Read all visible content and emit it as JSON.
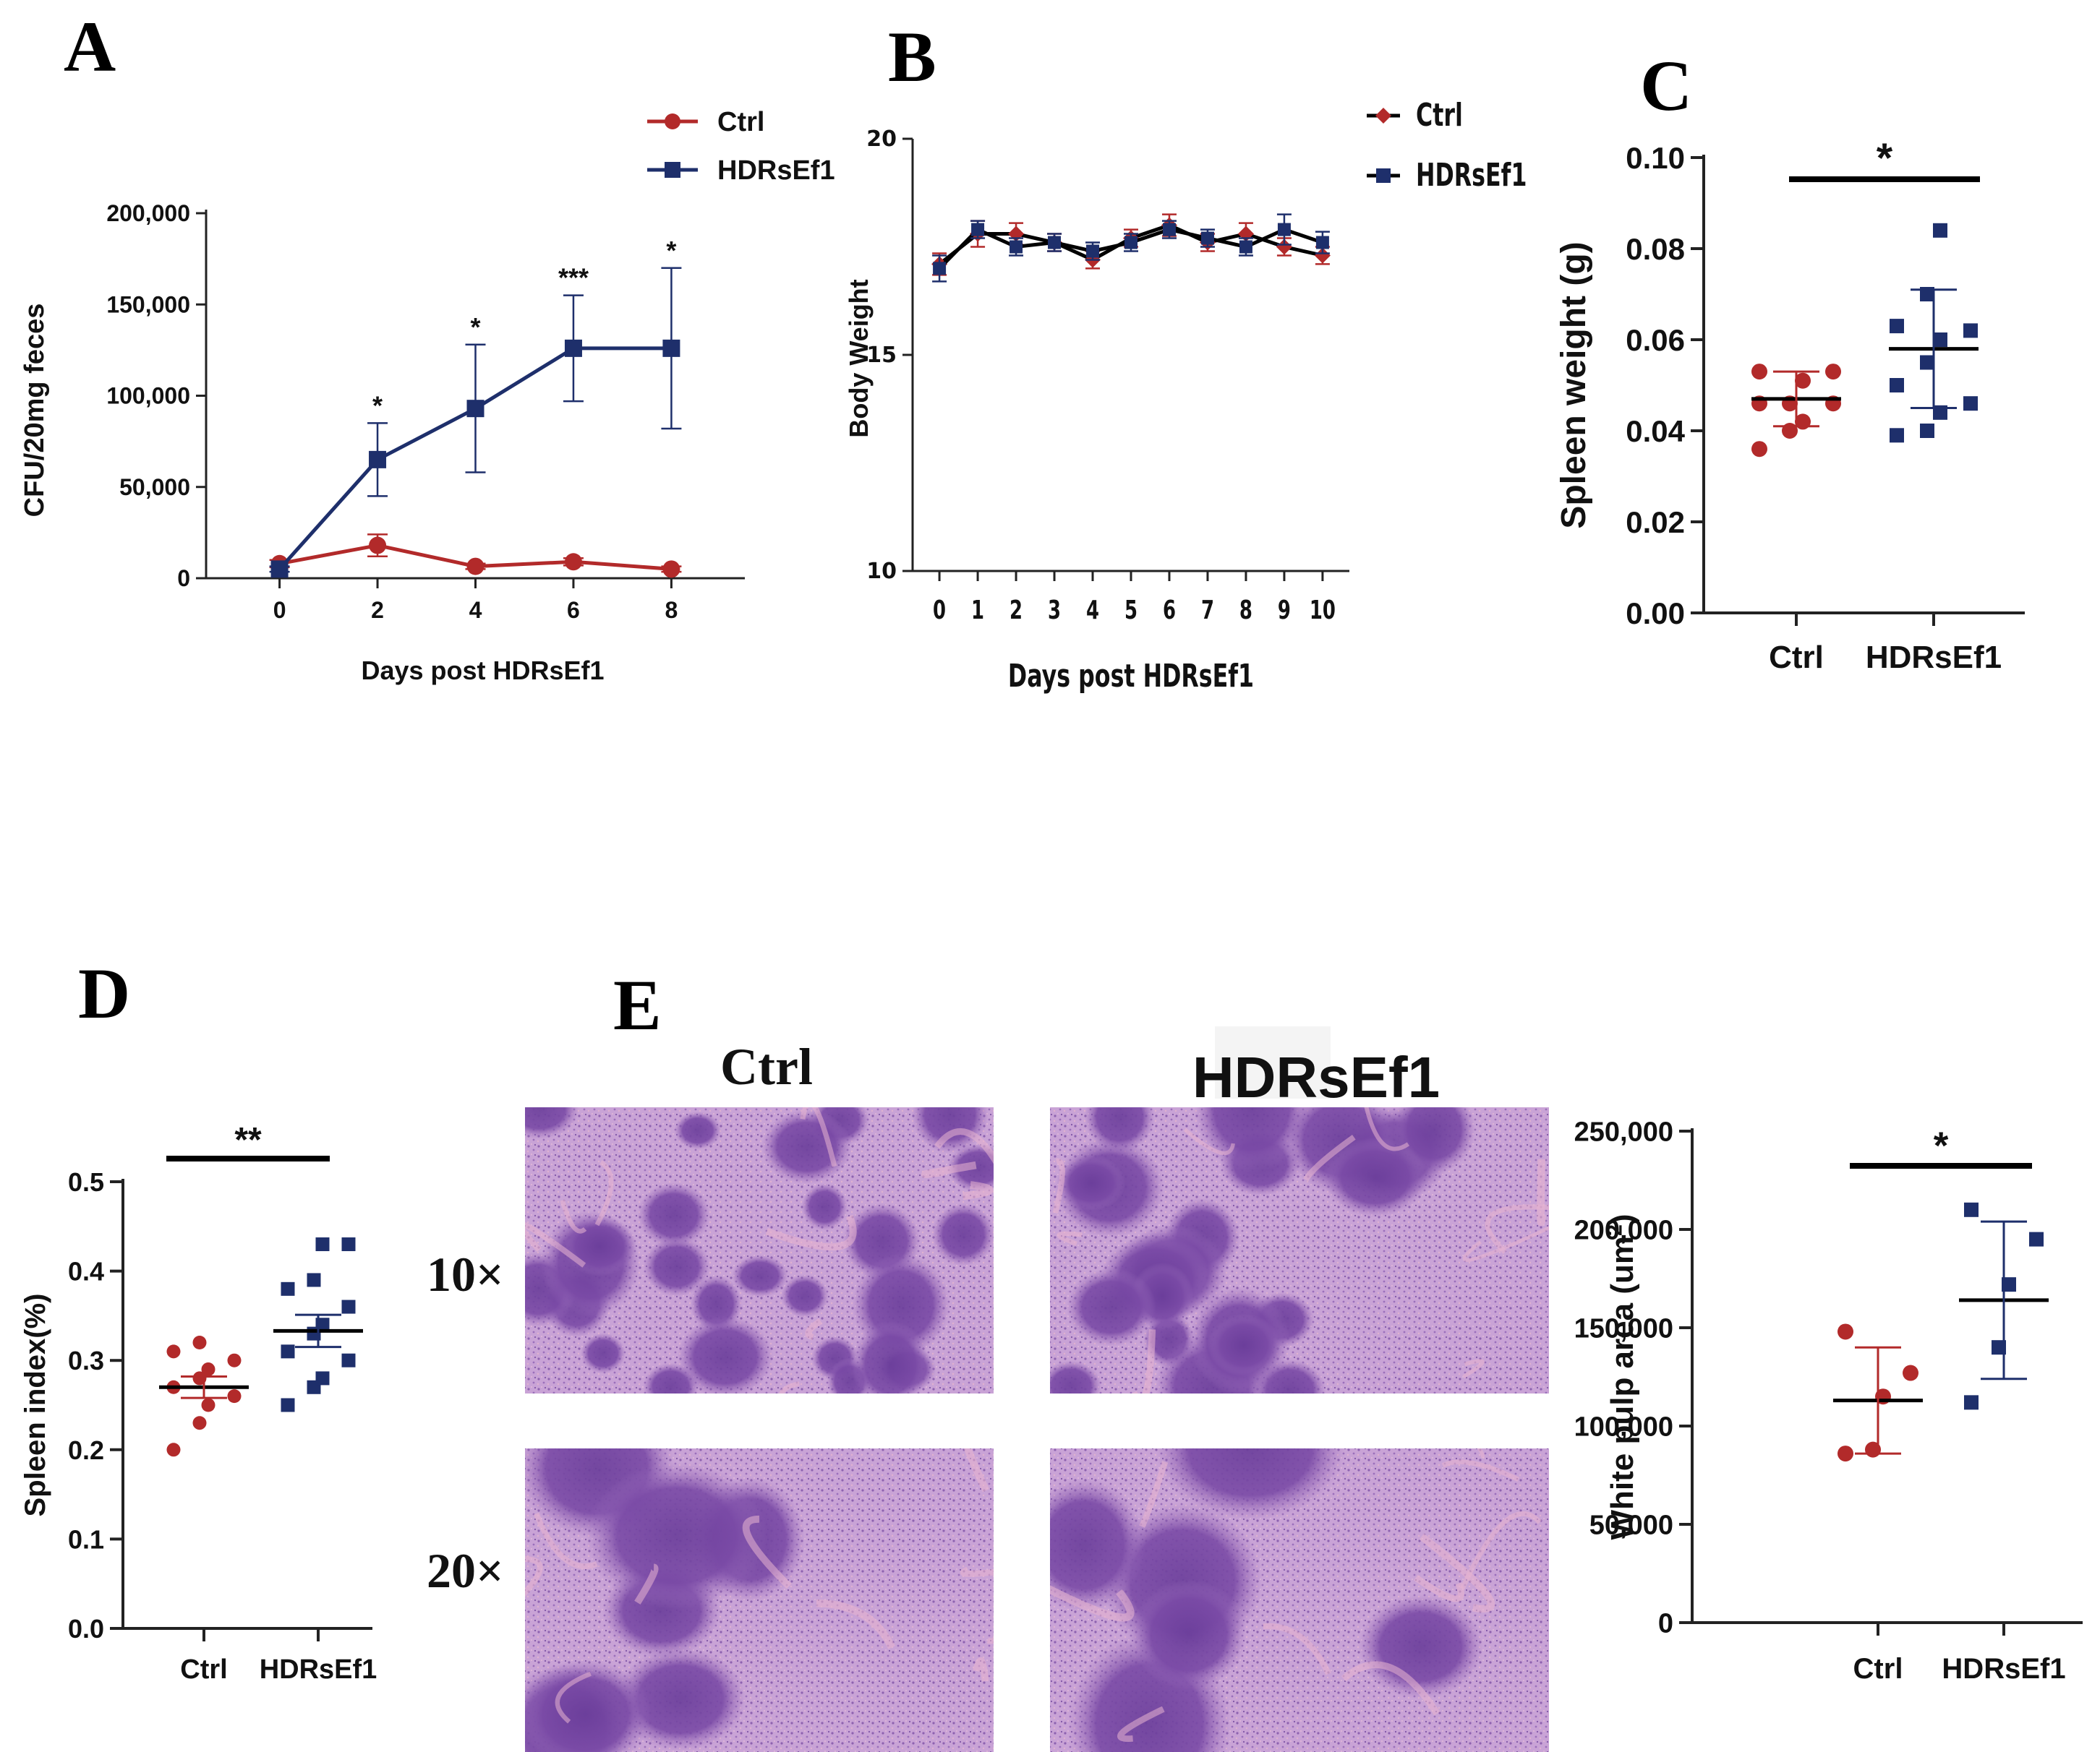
{
  "panels": {
    "A": "A",
    "B": "B",
    "C": "C",
    "D": "D",
    "E": "E"
  },
  "colors": {
    "ctrl": "#b22a2a",
    "hdr": "#1e2f6b",
    "black": "#000000"
  },
  "chart_data": [
    {
      "id": "A",
      "type": "line",
      "xlabel": "Days post HDRsEf1",
      "ylabel": "CFU/20mg feces",
      "x": [
        0,
        2,
        4,
        6,
        8
      ],
      "xticks": [
        "0",
        "2",
        "4",
        "6",
        "8"
      ],
      "xlim": [
        -1.5,
        9.5
      ],
      "ylim": [
        0,
        200000
      ],
      "yticks": [
        "0",
        "50,000",
        "100,000",
        "150,000",
        "200,000"
      ],
      "ytick_values": [
        0,
        50000,
        100000,
        150000,
        200000
      ],
      "legend": [
        "Ctrl",
        "HDRsEf1"
      ],
      "series": [
        {
          "name": "Ctrl",
          "values": [
            8000,
            18000,
            6500,
            9000,
            5000
          ],
          "err": [
            2000,
            6000,
            1500,
            2000,
            1500
          ]
        },
        {
          "name": "HDRsEf1",
          "values": [
            5000,
            65000,
            93000,
            126000,
            126000
          ],
          "err": [
            1500,
            20000,
            35000,
            29000,
            44000
          ]
        }
      ],
      "annotations": [
        {
          "x": 2,
          "text": "*"
        },
        {
          "x": 4,
          "text": "*"
        },
        {
          "x": 6,
          "text": "***"
        },
        {
          "x": 8,
          "text": "*"
        }
      ]
    },
    {
      "id": "B",
      "type": "line",
      "xlabel": "Days post HDRsEf1",
      "ylabel": "Body  Weight",
      "x": [
        0,
        1,
        2,
        3,
        4,
        5,
        6,
        7,
        8,
        9,
        10
      ],
      "xticks": [
        "0",
        "1",
        "2",
        "3",
        "4",
        "5",
        "6",
        "7",
        "8",
        "9",
        "10"
      ],
      "xlim": [
        -0.7,
        10.7
      ],
      "ylim": [
        10,
        20
      ],
      "yticks": [
        "10",
        "15",
        "20"
      ],
      "ytick_values": [
        10,
        15,
        20
      ],
      "legend": [
        "Ctrl",
        "HDRsEf1"
      ],
      "series": [
        {
          "name": "Ctrl",
          "values": [
            17.1,
            17.8,
            17.8,
            17.6,
            17.2,
            17.7,
            18.0,
            17.6,
            17.8,
            17.5,
            17.3
          ],
          "err": [
            0.25,
            0.3,
            0.25,
            0.2,
            0.2,
            0.2,
            0.25,
            0.2,
            0.25,
            0.2,
            0.2
          ]
        },
        {
          "name": "HDRsEf1",
          "values": [
            17.0,
            17.9,
            17.5,
            17.6,
            17.4,
            17.6,
            17.9,
            17.7,
            17.5,
            17.9,
            17.6
          ],
          "err": [
            0.3,
            0.2,
            0.2,
            0.2,
            0.2,
            0.2,
            0.2,
            0.2,
            0.2,
            0.35,
            0.25
          ]
        }
      ]
    },
    {
      "id": "C",
      "type": "scatter",
      "ylabel": "Spleen weight (g)",
      "categories": [
        "Ctrl",
        "HDRsEf1"
      ],
      "ylim": [
        0,
        0.1
      ],
      "yticks": [
        "0.00",
        "0.02",
        "0.04",
        "0.06",
        "0.08",
        "0.10"
      ],
      "ytick_values": [
        0,
        0.02,
        0.04,
        0.06,
        0.08,
        0.1
      ],
      "groups": [
        {
          "name": "Ctrl",
          "points": [
            0.036,
            0.04,
            0.042,
            0.046,
            0.046,
            0.046,
            0.051,
            0.053,
            0.053
          ],
          "mean": 0.047,
          "err": 0.006
        },
        {
          "name": "HDRsEf1",
          "points": [
            0.039,
            0.04,
            0.044,
            0.046,
            0.05,
            0.055,
            0.06,
            0.062,
            0.063,
            0.07,
            0.084
          ],
          "mean": 0.058,
          "err": 0.013
        }
      ],
      "significance": "*"
    },
    {
      "id": "D",
      "type": "scatter",
      "ylabel": "Spleen index(%)",
      "categories": [
        "Ctrl",
        "HDRsEf1"
      ],
      "ylim": [
        0,
        0.5
      ],
      "yticks": [
        "0.0",
        "0.1",
        "0.2",
        "0.3",
        "0.4",
        "0.5"
      ],
      "ytick_values": [
        0,
        0.1,
        0.2,
        0.3,
        0.4,
        0.5
      ],
      "groups": [
        {
          "name": "Ctrl",
          "points": [
            0.2,
            0.23,
            0.25,
            0.26,
            0.27,
            0.28,
            0.29,
            0.3,
            0.31,
            0.32
          ],
          "mean": 0.27,
          "err": 0.012
        },
        {
          "name": "HDRsEf1",
          "points": [
            0.25,
            0.27,
            0.28,
            0.3,
            0.31,
            0.33,
            0.34,
            0.36,
            0.38,
            0.39,
            0.43,
            0.43
          ],
          "mean": 0.333,
          "err": 0.018
        }
      ],
      "significance": "**"
    },
    {
      "id": "E-chart",
      "type": "scatter",
      "ylabel": "White pulp area (um",
      "ylabel_sup": "2",
      "ylabel_end": ")",
      "categories": [
        "Ctrl",
        "HDRsEf1"
      ],
      "ylim": [
        0,
        250000
      ],
      "yticks": [
        "0",
        "50,000",
        "100,000",
        "150,000",
        "200,000",
        "250,000"
      ],
      "ytick_values": [
        0,
        50000,
        100000,
        150000,
        200000,
        250000
      ],
      "groups": [
        {
          "name": "Ctrl",
          "points": [
            86000,
            88000,
            115000,
            127000,
            148000
          ],
          "mean": 113000,
          "err": 27000
        },
        {
          "name": "HDRsEf1",
          "points": [
            112000,
            140000,
            172000,
            195000,
            210000
          ],
          "mean": 164000,
          "err": 40000
        }
      ],
      "significance": "*"
    }
  ],
  "histology": {
    "col_labels": [
      "Ctrl",
      "HDRsEf1"
    ],
    "row_labels": [
      "10×",
      "20×"
    ]
  }
}
